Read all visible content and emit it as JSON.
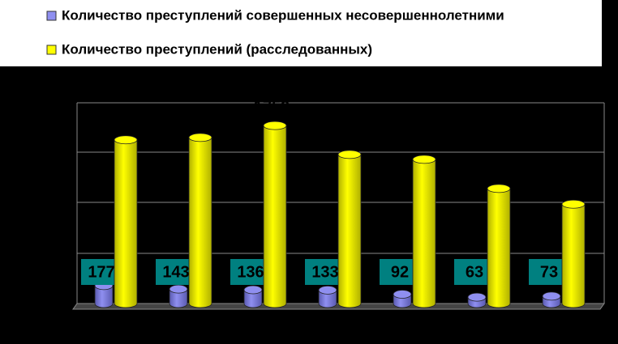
{
  "chart_data": {
    "type": "bar",
    "categories": [
      null,
      null,
      null,
      null,
      null,
      null,
      null
    ],
    "series": [
      {
        "name": "Количество преступлений совершенных несовершеннолетними",
        "color": "#8f8ff0",
        "values": [
          177,
          143,
          136,
          133,
          92,
          63,
          73
        ]
      },
      {
        "name": "Количество преступлений (расследованных)",
        "color": "#ffff00",
        "values": [
          1618,
          1641,
          1759,
          1473,
          1425,
          1137,
          982
        ]
      }
    ],
    "ylim": [
      0,
      2000
    ],
    "grid": true,
    "legend": "top"
  }
}
